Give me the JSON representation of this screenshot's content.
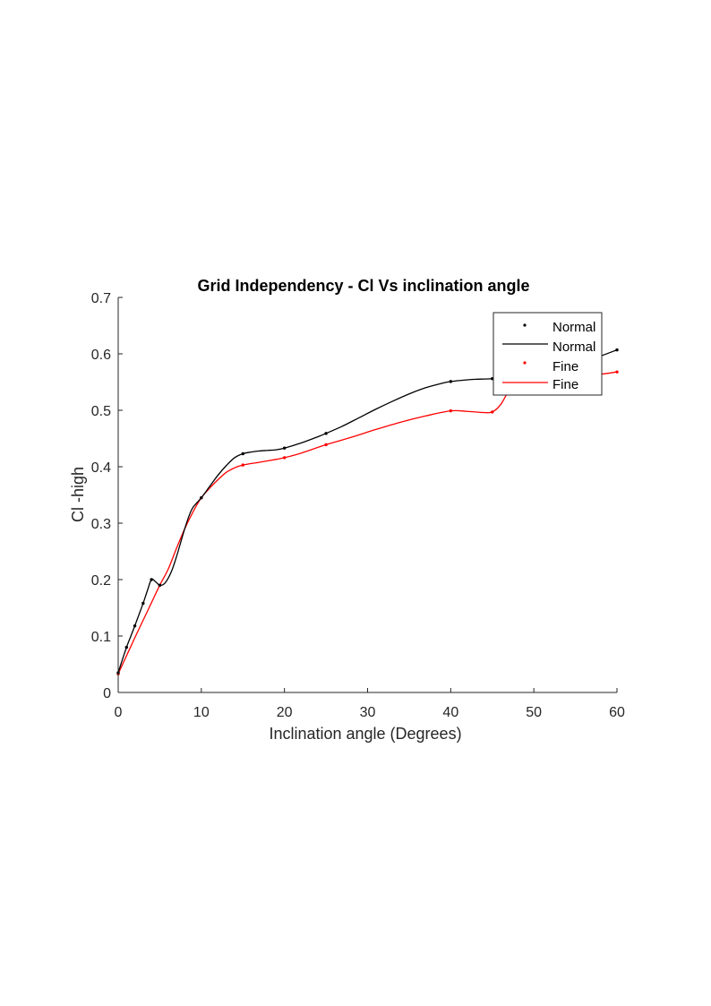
{
  "chart_data": {
    "type": "line",
    "title": "Grid Independency - Cl Vs  inclination angle",
    "xlabel": "Inclination angle (Degrees)",
    "ylabel": "Cl -high",
    "xlim": [
      0,
      60
    ],
    "ylim": [
      0,
      0.7
    ],
    "xticks": [
      0,
      10,
      20,
      30,
      40,
      50,
      60
    ],
    "yticks": [
      0,
      0.1,
      0.2,
      0.3,
      0.4,
      0.5,
      0.6,
      0.7
    ],
    "grid": false,
    "legend_position": "top-right",
    "legend": [
      "Normal",
      "Normal",
      "Fine",
      "Fine"
    ],
    "series": [
      {
        "name": "Normal",
        "color": "#000000",
        "marker": "point",
        "points": [
          [
            0,
            0.035
          ],
          [
            1,
            0.08
          ],
          [
            2,
            0.118
          ],
          [
            3,
            0.158
          ],
          [
            4,
            0.2
          ],
          [
            5,
            0.19
          ],
          [
            10,
            0.345
          ],
          [
            15,
            0.423
          ],
          [
            20,
            0.433
          ],
          [
            25,
            0.459
          ],
          [
            40,
            0.551
          ],
          [
            45,
            0.556
          ],
          [
            60,
            0.607
          ]
        ],
        "curve": [
          [
            0,
            0.035
          ],
          [
            0.5,
            0.058
          ],
          [
            1,
            0.08
          ],
          [
            1.5,
            0.099
          ],
          [
            2,
            0.118
          ],
          [
            2.5,
            0.138
          ],
          [
            3,
            0.158
          ],
          [
            3.5,
            0.18
          ],
          [
            4,
            0.2
          ],
          [
            4.5,
            0.196
          ],
          [
            5,
            0.19
          ],
          [
            5.5,
            0.192
          ],
          [
            6,
            0.202
          ],
          [
            6.5,
            0.218
          ],
          [
            7,
            0.24
          ],
          [
            7.5,
            0.265
          ],
          [
            8,
            0.29
          ],
          [
            8.5,
            0.312
          ],
          [
            9,
            0.328
          ],
          [
            10,
            0.345
          ],
          [
            11,
            0.365
          ],
          [
            12,
            0.385
          ],
          [
            13,
            0.402
          ],
          [
            14,
            0.416
          ],
          [
            15,
            0.423
          ],
          [
            16,
            0.426
          ],
          [
            17,
            0.428
          ],
          [
            18,
            0.429
          ],
          [
            19,
            0.43
          ],
          [
            20,
            0.433
          ],
          [
            22,
            0.442
          ],
          [
            24,
            0.453
          ],
          [
            25,
            0.459
          ],
          [
            27,
            0.472
          ],
          [
            29,
            0.487
          ],
          [
            31,
            0.502
          ],
          [
            33,
            0.516
          ],
          [
            35,
            0.529
          ],
          [
            37,
            0.54
          ],
          [
            39,
            0.548
          ],
          [
            40,
            0.551
          ],
          [
            42,
            0.554
          ],
          [
            43,
            0.555
          ],
          [
            45,
            0.556
          ],
          [
            47,
            0.56
          ],
          [
            50,
            0.57
          ],
          [
            53,
            0.578
          ],
          [
            56,
            0.587
          ],
          [
            58,
            0.596
          ],
          [
            60,
            0.607
          ]
        ]
      },
      {
        "name": "Fine",
        "color": "#ff0000",
        "marker": "point",
        "points": [
          [
            0,
            0.033
          ],
          [
            5,
            0.19
          ],
          [
            10,
            0.345
          ],
          [
            15,
            0.403
          ],
          [
            20,
            0.416
          ],
          [
            25,
            0.439
          ],
          [
            40,
            0.499
          ],
          [
            45,
            0.497
          ],
          [
            60,
            0.568
          ]
        ],
        "curve": [
          [
            0,
            0.033
          ],
          [
            1,
            0.065
          ],
          [
            2,
            0.097
          ],
          [
            3,
            0.128
          ],
          [
            4,
            0.159
          ],
          [
            5,
            0.19
          ],
          [
            6,
            0.218
          ],
          [
            7,
            0.255
          ],
          [
            8,
            0.29
          ],
          [
            9,
            0.32
          ],
          [
            10,
            0.345
          ],
          [
            11,
            0.362
          ],
          [
            12,
            0.377
          ],
          [
            13,
            0.39
          ],
          [
            14,
            0.398
          ],
          [
            15,
            0.403
          ],
          [
            17,
            0.408
          ],
          [
            19,
            0.413
          ],
          [
            20,
            0.416
          ],
          [
            22,
            0.424
          ],
          [
            25,
            0.439
          ],
          [
            28,
            0.452
          ],
          [
            31,
            0.466
          ],
          [
            34,
            0.479
          ],
          [
            37,
            0.49
          ],
          [
            40,
            0.499
          ],
          [
            42,
            0.498
          ],
          [
            44,
            0.496
          ],
          [
            45,
            0.497
          ],
          [
            46,
            0.51
          ],
          [
            47,
            0.535
          ],
          [
            48,
            0.553
          ],
          [
            49,
            0.561
          ],
          [
            52,
            0.563
          ],
          [
            55,
            0.562
          ],
          [
            58,
            0.564
          ],
          [
            60,
            0.568
          ]
        ]
      }
    ]
  }
}
